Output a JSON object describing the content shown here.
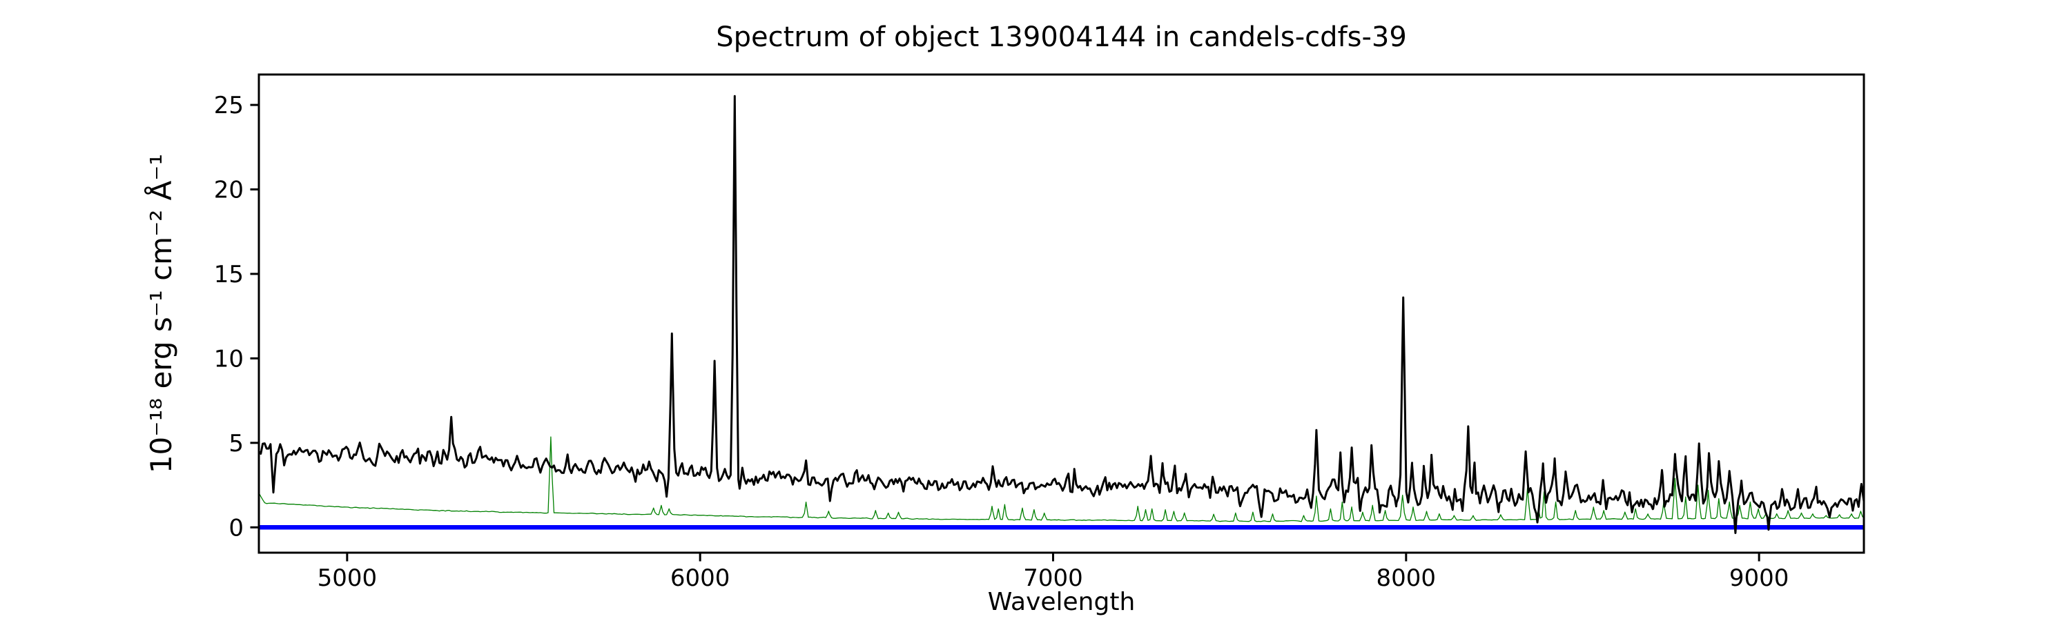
{
  "chart_data": {
    "type": "line",
    "title": "Spectrum of object 139004144 in candels-cdfs-39",
    "xlabel": "Wavelength",
    "ylabel": "10⁻¹⁸ erg s⁻¹ cm⁻² Å⁻¹",
    "xlim": [
      4750,
      9297
    ],
    "ylim": [
      -1.5,
      26.8
    ],
    "xticks": [
      5000,
      6000,
      7000,
      8000,
      9000
    ],
    "yticks": [
      0,
      5,
      10,
      15,
      20,
      25
    ],
    "grid": false,
    "legend": false,
    "background": "#ffffff",
    "axis_color": "#000000",
    "tick_font_px": 34,
    "series": [
      {
        "name": "flux-spectrum",
        "color": "#000000",
        "linewidth": 3,
        "continuum": [
          [
            4750,
            4.3
          ],
          [
            4900,
            4.25
          ],
          [
            5050,
            4.3
          ],
          [
            5200,
            4.1
          ],
          [
            5350,
            3.95
          ],
          [
            5500,
            3.8
          ],
          [
            5650,
            3.6
          ],
          [
            5800,
            3.45
          ],
          [
            5950,
            3.15
          ],
          [
            6100,
            3.0
          ],
          [
            6250,
            2.95
          ],
          [
            6450,
            2.8
          ],
          [
            6650,
            2.6
          ],
          [
            6900,
            2.5
          ],
          [
            7100,
            2.4
          ],
          [
            7300,
            2.3
          ],
          [
            7500,
            2.1
          ],
          [
            7700,
            2.1
          ],
          [
            7900,
            1.95
          ],
          [
            8100,
            1.9
          ],
          [
            8300,
            1.85
          ],
          [
            8500,
            1.75
          ],
          [
            8650,
            1.6
          ],
          [
            8800,
            1.85
          ],
          [
            8950,
            1.6
          ],
          [
            9100,
            1.4
          ],
          [
            9297,
            1.4
          ]
        ],
        "noise_sigma": [
          [
            4750,
            0.62
          ],
          [
            5300,
            0.55
          ],
          [
            5900,
            0.5
          ],
          [
            6500,
            0.45
          ],
          [
            7000,
            0.45
          ],
          [
            7250,
            0.6
          ],
          [
            7450,
            0.5
          ],
          [
            7700,
            0.55
          ],
          [
            7900,
            0.8
          ],
          [
            8250,
            0.75
          ],
          [
            8500,
            0.6
          ],
          [
            8680,
            0.5
          ],
          [
            8800,
            0.8
          ],
          [
            8960,
            0.65
          ],
          [
            9050,
            0.55
          ],
          [
            9297,
            0.5
          ]
        ],
        "features": [
          [
            4791,
            2.1,
            8
          ],
          [
            5295,
            6.5,
            7
          ],
          [
            5905,
            1.9,
            7
          ],
          [
            5920,
            11.5,
            8
          ],
          [
            6041,
            9.9,
            8
          ],
          [
            6098,
            25.5,
            9
          ],
          [
            6112,
            2.3,
            6
          ],
          [
            6300,
            4.0,
            7
          ],
          [
            6368,
            1.6,
            7
          ],
          [
            6829,
            3.6,
            7
          ],
          [
            7060,
            3.5,
            7
          ],
          [
            7277,
            4.3,
            8
          ],
          [
            7310,
            3.9,
            7
          ],
          [
            7345,
            3.6,
            7
          ],
          [
            7376,
            3.3,
            7
          ],
          [
            7452,
            3.0,
            7
          ],
          [
            7530,
            1.2,
            7
          ],
          [
            7590,
            0.7,
            10
          ],
          [
            7746,
            5.8,
            8
          ],
          [
            7814,
            4.4,
            7
          ],
          [
            7846,
            4.8,
            7
          ],
          [
            7870,
            1.0,
            6
          ],
          [
            7902,
            4.75,
            7
          ],
          [
            7925,
            0.9,
            6
          ],
          [
            7972,
            1.4,
            6
          ],
          [
            7992,
            13.5,
            9
          ],
          [
            8017,
            3.7,
            6
          ],
          [
            8050,
            3.5,
            6
          ],
          [
            8072,
            4.3,
            7
          ],
          [
            8132,
            1.15,
            6
          ],
          [
            8176,
            5.9,
            7
          ],
          [
            8194,
            4.0,
            6
          ],
          [
            8262,
            0.95,
            6
          ],
          [
            8298,
            2.4,
            6
          ],
          [
            8339,
            4.5,
            8
          ],
          [
            8372,
            0.1,
            7
          ],
          [
            8388,
            3.8,
            6
          ],
          [
            8421,
            4.0,
            6
          ],
          [
            8452,
            3.3,
            7
          ],
          [
            8558,
            2.9,
            7
          ],
          [
            8640,
            0.9,
            7
          ],
          [
            8700,
            1.0,
            6
          ],
          [
            8725,
            3.5,
            7
          ],
          [
            8762,
            4.4,
            7
          ],
          [
            8792,
            4.1,
            7
          ],
          [
            8830,
            4.8,
            8
          ],
          [
            8858,
            4.4,
            7
          ],
          [
            8886,
            3.8,
            7
          ],
          [
            8916,
            3.3,
            7
          ],
          [
            8933,
            -0.35,
            6
          ],
          [
            8950,
            2.7,
            6
          ],
          [
            9027,
            0.0,
            7
          ],
          [
            9065,
            2.3,
            7
          ],
          [
            9110,
            2.2,
            7
          ],
          [
            9162,
            2.4,
            7
          ],
          [
            9200,
            0.55,
            6
          ],
          [
            9290,
            2.6,
            7
          ]
        ]
      },
      {
        "name": "noise-spectrum",
        "color": "#008000",
        "linewidth": 1.3,
        "continuum": [
          [
            4750,
            2.05
          ],
          [
            4765,
            1.45
          ],
          [
            4900,
            1.3
          ],
          [
            5000,
            1.18
          ],
          [
            5250,
            1.0
          ],
          [
            5500,
            0.88
          ],
          [
            5750,
            0.8
          ],
          [
            5950,
            0.73
          ],
          [
            6150,
            0.64
          ],
          [
            6400,
            0.55
          ],
          [
            6700,
            0.48
          ],
          [
            7000,
            0.44
          ],
          [
            7300,
            0.4
          ],
          [
            7600,
            0.36
          ],
          [
            7900,
            0.4
          ],
          [
            8200,
            0.44
          ],
          [
            8500,
            0.48
          ],
          [
            8800,
            0.52
          ],
          [
            9050,
            0.53
          ],
          [
            9297,
            0.56
          ]
        ],
        "noise_sigma": [
          [
            4750,
            0.025
          ],
          [
            9297,
            0.025
          ]
        ],
        "features": [
          [
            5577,
            5.35,
            7
          ],
          [
            5868,
            1.15,
            6
          ],
          [
            5890,
            1.3,
            6
          ],
          [
            5912,
            1.1,
            6
          ],
          [
            6300,
            1.5,
            6
          ],
          [
            6364,
            0.95,
            6
          ],
          [
            6497,
            1.0,
            6
          ],
          [
            6533,
            0.85,
            6
          ],
          [
            6562,
            0.9,
            6
          ],
          [
            6827,
            1.25,
            6
          ],
          [
            6845,
            1.1,
            6
          ],
          [
            6863,
            1.35,
            6
          ],
          [
            6913,
            1.15,
            6
          ],
          [
            6946,
            1.05,
            6
          ],
          [
            6975,
            0.85,
            6
          ],
          [
            7240,
            1.25,
            6
          ],
          [
            7262,
            1.05,
            6
          ],
          [
            7280,
            1.1,
            6
          ],
          [
            7318,
            1.05,
            6
          ],
          [
            7342,
            0.95,
            6
          ],
          [
            7372,
            0.85,
            6
          ],
          [
            7455,
            0.78,
            6
          ],
          [
            7517,
            0.85,
            6
          ],
          [
            7566,
            0.9,
            6
          ],
          [
            7622,
            0.8,
            6
          ],
          [
            7710,
            0.7,
            6
          ],
          [
            7746,
            1.85,
            6
          ],
          [
            7786,
            1.1,
            6
          ],
          [
            7819,
            1.5,
            6
          ],
          [
            7846,
            1.2,
            6
          ],
          [
            7877,
            0.9,
            6
          ],
          [
            7905,
            1.3,
            6
          ],
          [
            7941,
            1.0,
            6
          ],
          [
            7990,
            1.9,
            7
          ],
          [
            8020,
            1.2,
            6
          ],
          [
            8058,
            0.95,
            6
          ],
          [
            8094,
            0.8,
            6
          ],
          [
            8136,
            0.7,
            6
          ],
          [
            8190,
            0.7,
            6
          ],
          [
            8268,
            0.75,
            6
          ],
          [
            8344,
            2.35,
            7
          ],
          [
            8375,
            1.1,
            6
          ],
          [
            8391,
            2.1,
            6
          ],
          [
            8424,
            1.5,
            6
          ],
          [
            8480,
            1.0,
            6
          ],
          [
            8531,
            1.2,
            6
          ],
          [
            8560,
            1.0,
            6
          ],
          [
            8620,
            0.9,
            6
          ],
          [
            8650,
            1.1,
            6
          ],
          [
            8685,
            0.8,
            6
          ],
          [
            8730,
            1.5,
            6
          ],
          [
            8762,
            2.9,
            7
          ],
          [
            8792,
            1.8,
            6
          ],
          [
            8827,
            2.5,
            7
          ],
          [
            8856,
            2.2,
            6
          ],
          [
            8886,
            1.7,
            6
          ],
          [
            8916,
            1.5,
            6
          ],
          [
            8945,
            1.3,
            6
          ],
          [
            8975,
            1.5,
            6
          ],
          [
            8998,
            1.1,
            6
          ],
          [
            9020,
            0.85,
            6
          ],
          [
            9050,
            0.8,
            6
          ],
          [
            9082,
            1.0,
            6
          ],
          [
            9120,
            0.85,
            6
          ],
          [
            9152,
            0.8,
            6
          ],
          [
            9190,
            0.7,
            6
          ],
          [
            9228,
            0.75,
            6
          ],
          [
            9262,
            0.8,
            6
          ],
          [
            9288,
            0.95,
            6
          ]
        ]
      },
      {
        "name": "zero-line",
        "color": "#0000ff",
        "linewidth": 6.5,
        "y": 0
      }
    ]
  }
}
